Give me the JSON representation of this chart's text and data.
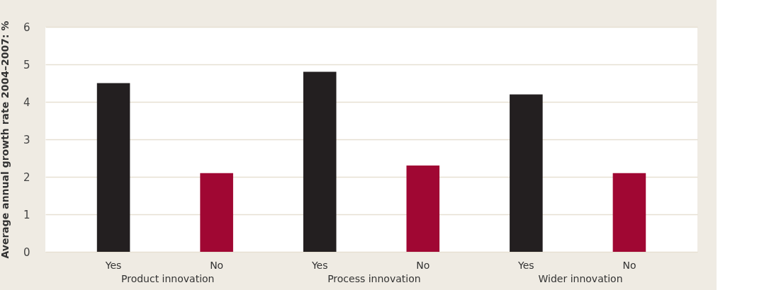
{
  "chart_data": {
    "type": "bar",
    "ylabel": "Average annual growth rate 2004–2007: %",
    "categories": [
      "Yes",
      "No",
      "Yes",
      "No",
      "Yes",
      "No"
    ],
    "values": [
      4.5,
      2.1,
      4.8,
      2.3,
      4.2,
      2.1
    ],
    "colors": [
      "#231f20",
      "#a00733",
      "#231f20",
      "#a00733",
      "#231f20",
      "#a00733"
    ],
    "annotations": [
      "Product innovation",
      "Process innovation",
      "Wider innovation"
    ],
    "ylim": [
      0,
      6
    ],
    "yticks": [
      0,
      1,
      2,
      3,
      4,
      5,
      6
    ],
    "grid": "y"
  }
}
